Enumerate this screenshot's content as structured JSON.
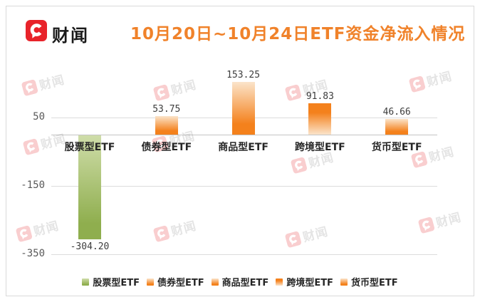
{
  "brand": {
    "name": "财闻"
  },
  "watermark": {
    "text": "财闻"
  },
  "chart_data": {
    "type": "bar",
    "title": "10月20日~10月24日ETF资金净流入情况",
    "categories": [
      "股票型ETF",
      "债券型ETF",
      "商品型ETF",
      "跨境型ETF",
      "货币型ETF"
    ],
    "values": [
      -304.2,
      53.75,
      153.25,
      91.83,
      46.66
    ],
    "value_labels": [
      "-304.20",
      "53.75",
      "153.25",
      "91.83",
      "46.66"
    ],
    "y_ticks": [
      50,
      -150,
      -350
    ],
    "y_tick_labels": [
      "50",
      "-150",
      "-350"
    ],
    "ylim": [
      -390,
      200
    ],
    "grid": true,
    "legend": [
      "股票型ETF",
      "债券型ETF",
      "商品型ETF",
      "跨境型ETF",
      "货币型ETF"
    ],
    "legend_position": "bottom",
    "bar_styles": [
      "green",
      "orange",
      "orange",
      "orange-reverse",
      "orange"
    ]
  },
  "colors": {
    "title": "#f0822a",
    "logo_red": "#e8232a",
    "brand_text": "#1a1a1a",
    "green_top": "#cfdda9",
    "green_bottom": "#8fae4e",
    "orange_light": "#fbe4ca",
    "orange": "#f4811c",
    "gridline": "#dcdcdc",
    "zero_line": "#c4c4c4",
    "axis_label": "#595959",
    "value_label": "#3d3d3d",
    "category_label": "#262626",
    "card_border": "#d9d9d9"
  }
}
